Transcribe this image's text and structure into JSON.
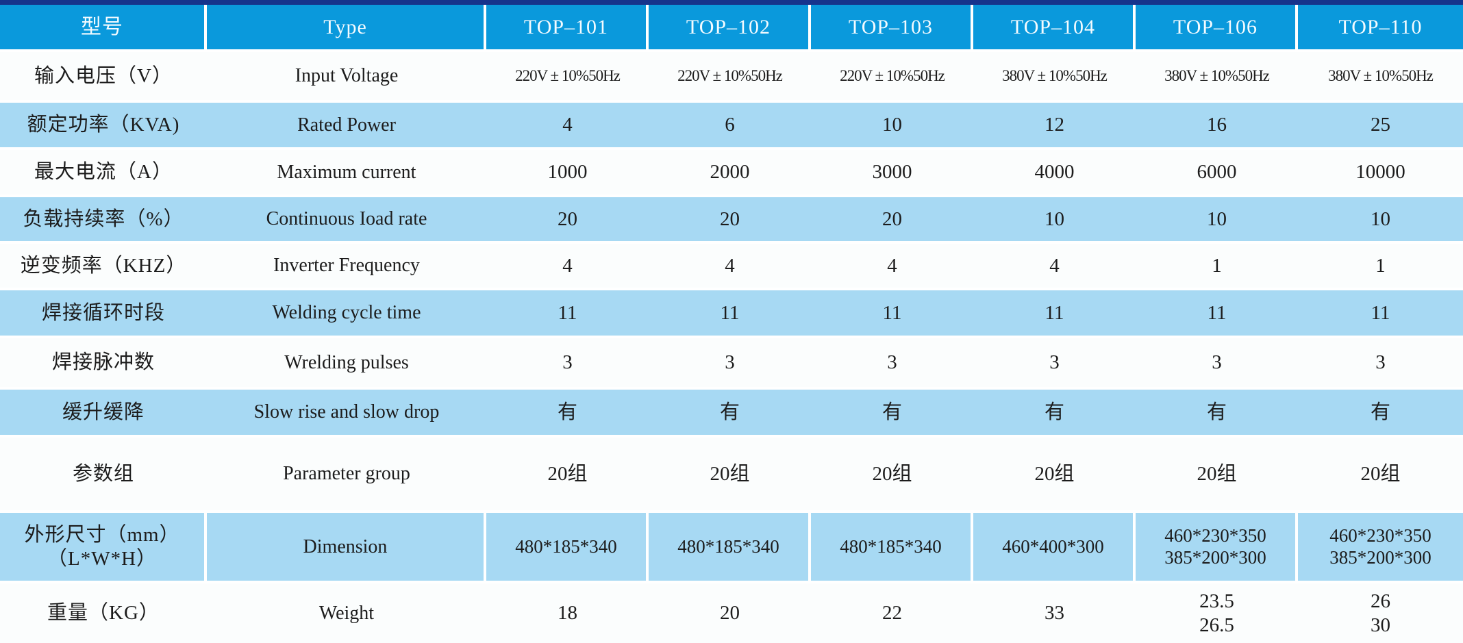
{
  "colors": {
    "top_bar": "#16348c",
    "header_bg": "#0a99dc",
    "header_text": "#f4fbff",
    "row_shade": "#a7d9f3",
    "row_plain": "#fbfdfd",
    "body_text": "#1c1c1c"
  },
  "table": {
    "header": {
      "model_label_cn": "型号",
      "model_label_en": "Type",
      "models": [
        "TOP–101",
        "TOP–102",
        "TOP–103",
        "TOP–104",
        "TOP–106",
        "TOP–110"
      ]
    },
    "rows": [
      {
        "cn": "输入电压（V）",
        "en": "Input Voltage",
        "values": [
          "220V ± 10%50Hz",
          "220V ± 10%50Hz",
          "220V ± 10%50Hz",
          "380V ± 10%50Hz",
          "380V ± 10%50Hz",
          "380V ± 10%50Hz"
        ]
      },
      {
        "cn": "额定功率（KVA)",
        "en": "Rated Power",
        "values": [
          "4",
          "6",
          "10",
          "12",
          "16",
          "25"
        ]
      },
      {
        "cn": "最大电流（A）",
        "en": "Maximum current",
        "values": [
          "1000",
          "2000",
          "3000",
          "4000",
          "6000",
          "10000"
        ]
      },
      {
        "cn": "负载持续率（%）",
        "en": "Continuous Ioad rate",
        "values": [
          "20",
          "20",
          "20",
          "10",
          "10",
          "10"
        ]
      },
      {
        "cn": "逆变频率（KHZ）",
        "en": "Inverter Frequency",
        "values": [
          "4",
          "4",
          "4",
          "4",
          "1",
          "1"
        ]
      },
      {
        "cn": "焊接循环时段",
        "en": "Welding cycle time",
        "values": [
          "11",
          "11",
          "11",
          "11",
          "11",
          "11"
        ]
      },
      {
        "cn": "焊接脉冲数",
        "en": "Wrelding pulses",
        "values": [
          "3",
          "3",
          "3",
          "3",
          "3",
          "3"
        ]
      },
      {
        "cn": "缓升缓降",
        "en": "Slow rise and slow drop",
        "values": [
          "有",
          "有",
          "有",
          "有",
          "有",
          "有"
        ]
      },
      {
        "cn": "参数组",
        "en": "Parameter group",
        "values": [
          "20组",
          "20组",
          "20组",
          "20组",
          "20组",
          "20组"
        ]
      },
      {
        "cn": "外形尺寸（mm）\n（L*W*H）",
        "en": "Dimension",
        "values": [
          "480*185*340",
          "480*185*340",
          "480*185*340",
          "460*400*300",
          "460*230*350\n385*200*300",
          "460*230*350\n385*200*300"
        ]
      },
      {
        "cn": "重量（KG）",
        "en": "Weight",
        "values": [
          "18",
          "20",
          "22",
          "33",
          "23.5\n26.5",
          "26\n30"
        ]
      }
    ]
  }
}
